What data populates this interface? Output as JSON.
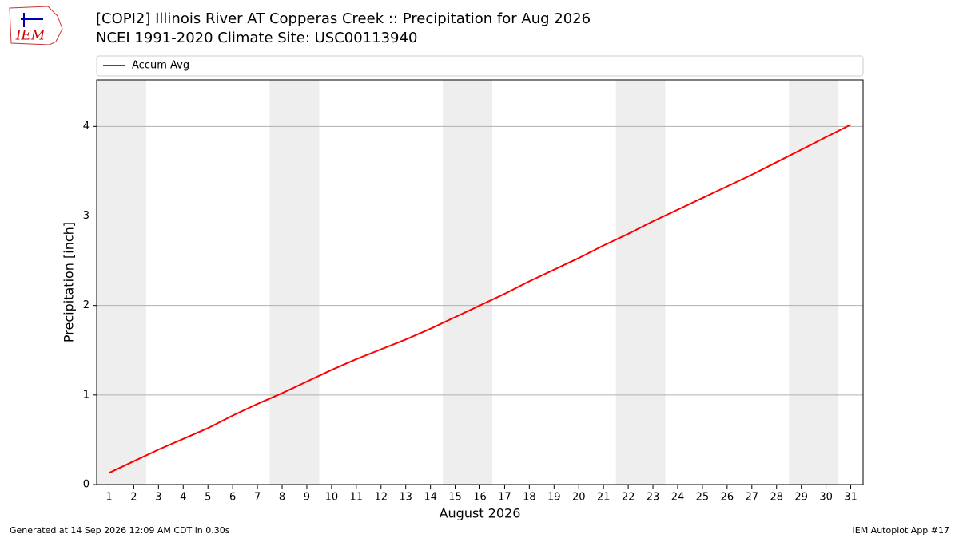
{
  "chart_data": {
    "type": "line",
    "title": "[COPI2] Illinois River  AT Copperas Creek :: Precipitation for Aug 2026",
    "subtitle": "NCEI 1991-2020 Climate Site: USC00113940",
    "xlabel": "August 2026",
    "ylabel": "Precipitation [inch]",
    "x": [
      1,
      2,
      3,
      4,
      5,
      6,
      7,
      8,
      9,
      10,
      11,
      12,
      13,
      14,
      15,
      16,
      17,
      18,
      19,
      20,
      21,
      22,
      23,
      24,
      25,
      26,
      27,
      28,
      29,
      30,
      31
    ],
    "series": [
      {
        "name": "Accum Avg",
        "color": "#ff0000",
        "values": [
          0.13,
          0.26,
          0.39,
          0.51,
          0.63,
          0.77,
          0.9,
          1.02,
          1.15,
          1.28,
          1.4,
          1.51,
          1.62,
          1.74,
          1.87,
          2.0,
          2.13,
          2.27,
          2.4,
          2.53,
          2.67,
          2.8,
          2.94,
          3.07,
          3.2,
          3.33,
          3.46,
          3.6,
          3.74,
          3.88,
          4.02
        ]
      }
    ],
    "shaded_ranges": [
      [
        0.5,
        2.5
      ],
      [
        7.5,
        9.5
      ],
      [
        14.5,
        16.5
      ],
      [
        21.5,
        23.5
      ],
      [
        28.5,
        30.5
      ]
    ],
    "shade_color": "#eeeeee",
    "xlim": [
      0.5,
      31.5
    ],
    "ylim": [
      0,
      4.52
    ],
    "xticks": [
      1,
      2,
      3,
      4,
      5,
      6,
      7,
      8,
      9,
      10,
      11,
      12,
      13,
      14,
      15,
      16,
      17,
      18,
      19,
      20,
      21,
      22,
      23,
      24,
      25,
      26,
      27,
      28,
      29,
      30,
      31
    ],
    "yticks": [
      0,
      1,
      2,
      3,
      4
    ],
    "grid": true,
    "legend": "top"
  },
  "logo_text": "IEM",
  "footer_left": "Generated at 14 Sep 2026 12:09 AM CDT in 0.30s",
  "footer_right": "IEM Autoplot App #17"
}
